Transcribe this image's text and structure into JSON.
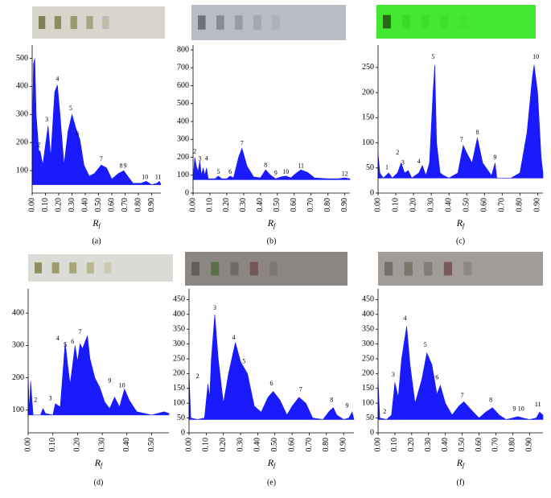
{
  "chart_data": [
    {
      "type": "area",
      "label": "(a)",
      "xlabel": {
        "main": "R",
        "sub": "f"
      },
      "color": "#1a1aff",
      "baseline": 50,
      "xlim": [
        0,
        0.97
      ],
      "xticks": [
        {
          "value": 0,
          "label": "0.00"
        },
        {
          "value": 0.1,
          "label": "0.10"
        },
        {
          "value": 0.2,
          "label": "0.20"
        },
        {
          "value": 0.3,
          "label": "0.30"
        },
        {
          "value": 0.4,
          "label": "0.40"
        },
        {
          "value": 0.5,
          "label": "0.50"
        },
        {
          "value": 0.6,
          "label": "0.60"
        },
        {
          "value": 0.7,
          "label": "0.70"
        },
        {
          "value": 0.8,
          "label": "0.80"
        },
        {
          "value": 0.9,
          "label": "0.90"
        }
      ],
      "ylim": [
        20,
        530
      ],
      "yticks": [
        100,
        200,
        300,
        400,
        500
      ],
      "x": [
        0,
        0.01,
        0.02,
        0.03,
        0.05,
        0.06,
        0.08,
        0.12,
        0.14,
        0.17,
        0.19,
        0.21,
        0.24,
        0.27,
        0.3,
        0.33,
        0.36,
        0.39,
        0.43,
        0.47,
        0.52,
        0.56,
        0.6,
        0.65,
        0.69,
        0.72,
        0.76,
        0.82,
        0.86,
        0.9,
        0.94,
        0.96,
        0.97
      ],
      "values": [
        200,
        480,
        500,
        300,
        170,
        170,
        120,
        260,
        150,
        380,
        405,
        300,
        120,
        240,
        300,
        250,
        210,
        120,
        80,
        90,
        120,
        110,
        70,
        90,
        100,
        80,
        55,
        55,
        62,
        50,
        55,
        62,
        50
      ],
      "peaks": [
        {
          "text": "2",
          "x": 0.05,
          "y": 190
        },
        {
          "text": "3",
          "x": 0.11,
          "y": 280
        },
        {
          "text": "4",
          "x": 0.19,
          "y": 425
        },
        {
          "text": "5",
          "x": 0.29,
          "y": 320
        },
        {
          "text": "6",
          "x": 0.34,
          "y": 230
        },
        {
          "text": "7",
          "x": 0.52,
          "y": 140
        },
        {
          "text": "8",
          "x": 0.67,
          "y": 115
        },
        {
          "text": "9",
          "x": 0.7,
          "y": 115
        },
        {
          "text": "10",
          "x": 0.85,
          "y": 75
        },
        {
          "text": "11",
          "x": 0.95,
          "y": 75
        }
      ]
    },
    {
      "type": "area",
      "label": "(b)",
      "xlabel": {
        "main": "R",
        "sub": "f"
      },
      "color": "#1a1aff",
      "baseline": 75,
      "xlim": [
        0,
        0.93
      ],
      "xticks": [
        {
          "value": 0,
          "label": "0.00"
        },
        {
          "value": 0.1,
          "label": "0.10"
        },
        {
          "value": 0.2,
          "label": "0.20"
        },
        {
          "value": 0.3,
          "label": "0.30"
        },
        {
          "value": 0.4,
          "label": "0.40"
        },
        {
          "value": 0.5,
          "label": "0.50"
        },
        {
          "value": 0.6,
          "label": "0.60"
        },
        {
          "value": 0.7,
          "label": "0.70"
        },
        {
          "value": 0.8,
          "label": "0.80"
        },
        {
          "value": 0.9,
          "label": "0.90"
        }
      ],
      "ylim": [
        0,
        800
      ],
      "yticks": [
        0,
        100,
        200,
        300,
        400,
        500,
        600,
        700,
        800
      ],
      "x": [
        0,
        0.01,
        0.02,
        0.03,
        0.04,
        0.05,
        0.06,
        0.07,
        0.08,
        0.09,
        0.13,
        0.15,
        0.17,
        0.2,
        0.22,
        0.24,
        0.27,
        0.29,
        0.32,
        0.36,
        0.4,
        0.43,
        0.46,
        0.49,
        0.52,
        0.55,
        0.58,
        0.61,
        0.64,
        0.68,
        0.72,
        0.8,
        0.86,
        0.9,
        0.93
      ],
      "values": [
        80,
        200,
        150,
        120,
        180,
        100,
        140,
        100,
        140,
        80,
        80,
        95,
        80,
        80,
        95,
        85,
        200,
        250,
        150,
        90,
        85,
        130,
        100,
        80,
        90,
        95,
        85,
        110,
        130,
        115,
        85,
        80,
        80,
        85,
        80
      ],
      "peaks": [
        {
          "text": "2",
          "x": 0.01,
          "y": 230
        },
        {
          "text": "3",
          "x": 0.04,
          "y": 190
        },
        {
          "text": "4",
          "x": 0.08,
          "y": 190
        },
        {
          "text": "5",
          "x": 0.15,
          "y": 115
        },
        {
          "text": "6",
          "x": 0.22,
          "y": 115
        },
        {
          "text": "7",
          "x": 0.29,
          "y": 275
        },
        {
          "text": "8",
          "x": 0.43,
          "y": 155
        },
        {
          "text": "9",
          "x": 0.49,
          "y": 110
        },
        {
          "text": "10",
          "x": 0.55,
          "y": 115
        },
        {
          "text": "11",
          "x": 0.64,
          "y": 150
        },
        {
          "text": "12",
          "x": 0.9,
          "y": 105
        }
      ]
    },
    {
      "type": "area",
      "label": "(c)",
      "xlabel": {
        "main": "R",
        "sub": "f"
      },
      "color": "#1a1aff",
      "baseline": 30,
      "xlim": [
        0,
        0.93
      ],
      "xticks": [
        {
          "value": 0,
          "label": "0.00"
        },
        {
          "value": 0.1,
          "label": "0.10"
        },
        {
          "value": 0.2,
          "label": "0.20"
        },
        {
          "value": 0.3,
          "label": "0.30"
        },
        {
          "value": 0.4,
          "label": "0.40"
        },
        {
          "value": 0.5,
          "label": "0.50"
        },
        {
          "value": 0.6,
          "label": "0.60"
        },
        {
          "value": 0.7,
          "label": "0.70"
        },
        {
          "value": 0.8,
          "label": "0.80"
        },
        {
          "value": 0.9,
          "label": "0.90"
        }
      ],
      "ylim": [
        0,
        285
      ],
      "yticks": [
        0,
        50,
        100,
        150,
        200,
        250
      ],
      "x": [
        0,
        0.01,
        0.03,
        0.06,
        0.08,
        0.11,
        0.13,
        0.15,
        0.17,
        0.19,
        0.23,
        0.25,
        0.27,
        0.29,
        0.31,
        0.32,
        0.33,
        0.35,
        0.37,
        0.4,
        0.45,
        0.48,
        0.5,
        0.53,
        0.56,
        0.59,
        0.62,
        0.64,
        0.66,
        0.67,
        0.75,
        0.8,
        0.84,
        0.87,
        0.88,
        0.9,
        0.92,
        0.93
      ],
      "values": [
        80,
        40,
        30,
        40,
        30,
        40,
        60,
        40,
        45,
        30,
        40,
        55,
        35,
        60,
        200,
        255,
        100,
        40,
        35,
        30,
        40,
        95,
        80,
        60,
        110,
        60,
        45,
        35,
        60,
        30,
        30,
        40,
        120,
        230,
        255,
        200,
        70,
        40
      ],
      "peaks": [
        {
          "text": "1",
          "x": 0.05,
          "y": 50
        },
        {
          "text": "2",
          "x": 0.11,
          "y": 80
        },
        {
          "text": "3",
          "x": 0.14,
          "y": 60
        },
        {
          "text": "4",
          "x": 0.23,
          "y": 62
        },
        {
          "text": "5",
          "x": 0.31,
          "y": 270
        },
        {
          "text": "7",
          "x": 0.47,
          "y": 105
        },
        {
          "text": "8",
          "x": 0.56,
          "y": 120
        },
        {
          "text": "9",
          "x": 0.66,
          "y": 70
        },
        {
          "text": "10",
          "x": 0.89,
          "y": 270
        }
      ]
    },
    {
      "type": "area",
      "label": "(d)",
      "xlabel": {
        "main": "R",
        "sub": "f"
      },
      "color": "#1a1aff",
      "baseline": 85,
      "xlim": [
        0,
        0.57
      ],
      "xticks": [
        {
          "value": 0,
          "label": "0.00"
        },
        {
          "value": 0.1,
          "label": "0.10"
        },
        {
          "value": 0.2,
          "label": "0.20"
        },
        {
          "value": 0.3,
          "label": "0.30"
        },
        {
          "value": 0.4,
          "label": "0.40"
        },
        {
          "value": 0.5,
          "label": "0.50"
        }
      ],
      "ylim": [
        30,
        460
      ],
      "yticks": [
        100,
        200,
        300,
        400
      ],
      "x": [
        0,
        0.005,
        0.01,
        0.02,
        0.05,
        0.06,
        0.07,
        0.1,
        0.11,
        0.13,
        0.15,
        0.16,
        0.17,
        0.19,
        0.2,
        0.21,
        0.22,
        0.24,
        0.25,
        0.27,
        0.29,
        0.31,
        0.33,
        0.35,
        0.37,
        0.39,
        0.41,
        0.44,
        0.5,
        0.55,
        0.57
      ],
      "values": [
        200,
        100,
        190,
        85,
        85,
        105,
        90,
        85,
        120,
        110,
        310,
        240,
        180,
        300,
        250,
        305,
        290,
        330,
        260,
        200,
        170,
        125,
        105,
        140,
        110,
        165,
        130,
        95,
        85,
        95,
        90
      ],
      "peaks": [
        {
          "text": "2",
          "x": 0.03,
          "y": 130
        },
        {
          "text": "3",
          "x": 0.09,
          "y": 135
        },
        {
          "text": "4",
          "x": 0.12,
          "y": 320
        },
        {
          "text": "5",
          "x": 0.15,
          "y": 300
        },
        {
          "text": "6",
          "x": 0.18,
          "y": 310
        },
        {
          "text": "7",
          "x": 0.21,
          "y": 340
        },
        {
          "text": "9",
          "x": 0.33,
          "y": 190
        },
        {
          "text": "10",
          "x": 0.38,
          "y": 175
        }
      ]
    },
    {
      "type": "area",
      "label": "(e)",
      "xlabel": {
        "main": "R",
        "sub": "f"
      },
      "color": "#1a1aff",
      "baseline": 45,
      "xlim": [
        0,
        0.96
      ],
      "xticks": [
        {
          "value": 0,
          "label": "0.00"
        },
        {
          "value": 0.1,
          "label": "0.10"
        },
        {
          "value": 0.2,
          "label": "0.20"
        },
        {
          "value": 0.3,
          "label": "0.30"
        },
        {
          "value": 0.4,
          "label": "0.40"
        },
        {
          "value": 0.5,
          "label": "0.50"
        },
        {
          "value": 0.6,
          "label": "0.60"
        },
        {
          "value": 0.7,
          "label": "0.70"
        },
        {
          "value": 0.8,
          "label": "0.80"
        },
        {
          "value": 0.9,
          "label": "0.90"
        }
      ],
      "ylim": [
        0,
        470
      ],
      "yticks": [
        0,
        50,
        100,
        150,
        200,
        250,
        300,
        350,
        400,
        450
      ],
      "x": [
        0,
        0.01,
        0.05,
        0.09,
        0.11,
        0.12,
        0.13,
        0.15,
        0.17,
        0.2,
        0.23,
        0.27,
        0.3,
        0.32,
        0.34,
        0.38,
        0.42,
        0.46,
        0.49,
        0.53,
        0.57,
        0.6,
        0.64,
        0.68,
        0.72,
        0.78,
        0.82,
        0.84,
        0.86,
        0.9,
        0.93,
        0.95,
        0.96
      ],
      "values": [
        200,
        50,
        45,
        50,
        165,
        120,
        250,
        400,
        250,
        100,
        200,
        305,
        240,
        220,
        200,
        90,
        70,
        120,
        140,
        110,
        60,
        90,
        120,
        100,
        50,
        45,
        75,
        85,
        60,
        45,
        50,
        70,
        45
      ],
      "peaks": [
        {
          "text": "2",
          "x": 0.05,
          "y": 190
        },
        {
          "text": "3",
          "x": 0.15,
          "y": 420
        },
        {
          "text": "4",
          "x": 0.26,
          "y": 320
        },
        {
          "text": "5",
          "x": 0.32,
          "y": 240
        },
        {
          "text": "6",
          "x": 0.48,
          "y": 165
        },
        {
          "text": "7",
          "x": 0.65,
          "y": 145
        },
        {
          "text": "8",
          "x": 0.83,
          "y": 110
        },
        {
          "text": "9",
          "x": 0.92,
          "y": 90
        }
      ]
    },
    {
      "type": "area",
      "label": "(f)",
      "xlabel": {
        "main": "R",
        "sub": "f"
      },
      "color": "#1a1aff",
      "baseline": 45,
      "xlim": [
        0,
        0.98
      ],
      "xticks": [
        {
          "value": 0,
          "label": "0.00"
        },
        {
          "value": 0.1,
          "label": "0.10"
        },
        {
          "value": 0.2,
          "label": "0.20"
        },
        {
          "value": 0.3,
          "label": "0.30"
        },
        {
          "value": 0.4,
          "label": "0.40"
        },
        {
          "value": 0.5,
          "label": "0.50"
        },
        {
          "value": 0.6,
          "label": "0.60"
        },
        {
          "value": 0.7,
          "label": "0.70"
        },
        {
          "value": 0.8,
          "label": "0.80"
        },
        {
          "value": 0.9,
          "label": "0.90"
        }
      ],
      "ylim": [
        0,
        470
      ],
      "yticks": [
        0,
        50,
        100,
        150,
        200,
        250,
        300,
        350,
        400,
        450
      ],
      "x": [
        0,
        0.01,
        0.05,
        0.08,
        0.1,
        0.12,
        0.14,
        0.17,
        0.19,
        0.22,
        0.26,
        0.29,
        0.32,
        0.35,
        0.37,
        0.4,
        0.44,
        0.48,
        0.51,
        0.55,
        0.6,
        0.64,
        0.68,
        0.72,
        0.76,
        0.8,
        0.83,
        0.86,
        0.9,
        0.94,
        0.96,
        0.98
      ],
      "values": [
        180,
        50,
        45,
        60,
        170,
        120,
        250,
        360,
        230,
        100,
        180,
        270,
        230,
        130,
        160,
        100,
        60,
        90,
        105,
        80,
        50,
        70,
        85,
        60,
        45,
        50,
        55,
        50,
        45,
        50,
        70,
        60
      ],
      "peaks": [
        {
          "text": "2",
          "x": 0.04,
          "y": 70
        },
        {
          "text": "3",
          "x": 0.09,
          "y": 195
        },
        {
          "text": "4",
          "x": 0.16,
          "y": 385
        },
        {
          "text": "5",
          "x": 0.28,
          "y": 295
        },
        {
          "text": "6",
          "x": 0.35,
          "y": 185
        },
        {
          "text": "7",
          "x": 0.5,
          "y": 125
        },
        {
          "text": "8",
          "x": 0.67,
          "y": 110
        },
        {
          "text": "9",
          "x": 0.81,
          "y": 80
        },
        {
          "text": "10",
          "x": 0.85,
          "y": 80
        },
        {
          "text": "11",
          "x": 0.95,
          "y": 95
        }
      ]
    }
  ]
}
